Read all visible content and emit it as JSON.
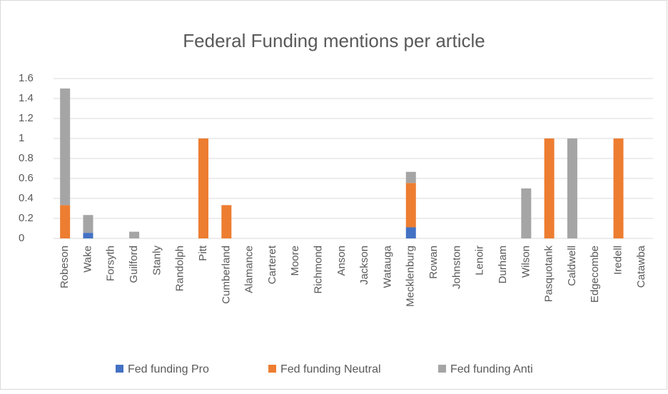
{
  "chart_data": {
    "type": "stacked_bar",
    "title": "Federal Funding mentions per article",
    "categories": [
      "Robeson",
      "Wake",
      "Forsyth",
      "Guilford",
      "Stanly",
      "Randolph",
      "Pitt",
      "Cumberland",
      "Alamance",
      "Carteret",
      "Moore",
      "Richmond",
      "Anson",
      "Jackson",
      "Watauga",
      "Mecklenburg",
      "Rowan",
      "Johnston",
      "Lenoir",
      "Durham",
      "Wilson",
      "Pasquotank",
      "Caldwell",
      "Edgecombe",
      "Iredell",
      "Catawba"
    ],
    "series": [
      {
        "name": "Fed funding Pro",
        "color": "#4472c4",
        "values": [
          0,
          0.056,
          0,
          0,
          0,
          0,
          0,
          0,
          0,
          0,
          0,
          0,
          0,
          0,
          0,
          0.111,
          0,
          0,
          0,
          0,
          0,
          0,
          0,
          0,
          0,
          0
        ]
      },
      {
        "name": "Fed funding Neutral",
        "color": "#ed7d31",
        "values": [
          0.333,
          0,
          0,
          0,
          0,
          0,
          1,
          0.333,
          0,
          0,
          0,
          0,
          0,
          0,
          0,
          0.444,
          0,
          0,
          0,
          0,
          0,
          1,
          0,
          0,
          1,
          0
        ]
      },
      {
        "name": "Fed funding Anti",
        "color": "#a5a5a5",
        "values": [
          1.167,
          0.178,
          0,
          0.067,
          0,
          0,
          0,
          0,
          0,
          0,
          0,
          0,
          0,
          0,
          0,
          0.111,
          0,
          0,
          0,
          0,
          0.5,
          0,
          1,
          0,
          0,
          0
        ]
      }
    ],
    "ylim": [
      0,
      1.6
    ],
    "yticks": [
      0,
      0.2,
      0.4,
      0.6,
      0.8,
      1,
      1.2,
      1.4,
      1.6
    ],
    "grid": true,
    "legend": "bottom"
  }
}
